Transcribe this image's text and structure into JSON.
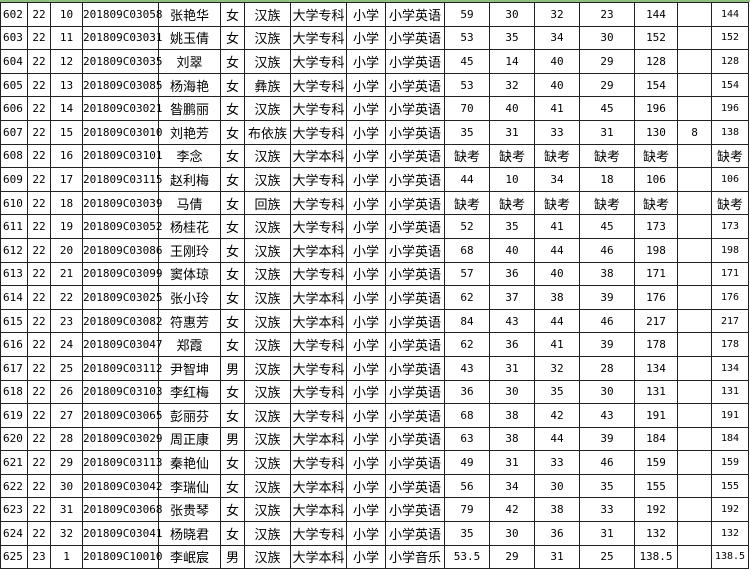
{
  "rows": [
    [
      "602",
      "22",
      "10",
      "201809C03058",
      "张艳华",
      "女",
      "汉族",
      "大学专科",
      "小学",
      "小学英语",
      "59",
      "30",
      "32",
      "23",
      "144",
      "",
      "144"
    ],
    [
      "603",
      "22",
      "11",
      "201809C03031",
      "姚玉倩",
      "女",
      "汉族",
      "大学专科",
      "小学",
      "小学英语",
      "53",
      "35",
      "34",
      "30",
      "152",
      "",
      "152"
    ],
    [
      "604",
      "22",
      "12",
      "201809C03035",
      "刘翠",
      "女",
      "汉族",
      "大学专科",
      "小学",
      "小学英语",
      "45",
      "14",
      "40",
      "29",
      "128",
      "",
      "128"
    ],
    [
      "605",
      "22",
      "13",
      "201809C03085",
      "杨海艳",
      "女",
      "彝族",
      "大学专科",
      "小学",
      "小学英语",
      "53",
      "32",
      "40",
      "29",
      "154",
      "",
      "154"
    ],
    [
      "606",
      "22",
      "14",
      "201809C03021",
      "昝鹏丽",
      "女",
      "汉族",
      "大学专科",
      "小学",
      "小学英语",
      "70",
      "40",
      "41",
      "45",
      "196",
      "",
      "196"
    ],
    [
      "607",
      "22",
      "15",
      "201809C03010",
      "刘艳芳",
      "女",
      "布依族",
      "大学专科",
      "小学",
      "小学英语",
      "35",
      "31",
      "33",
      "31",
      "130",
      "8",
      "138"
    ],
    [
      "608",
      "22",
      "16",
      "201809C03101",
      "李念",
      "女",
      "汉族",
      "大学本科",
      "小学",
      "小学英语",
      "缺考",
      "缺考",
      "缺考",
      "缺考",
      "缺考",
      "",
      "缺考"
    ],
    [
      "609",
      "22",
      "17",
      "201809C03115",
      "赵利梅",
      "女",
      "汉族",
      "大学专科",
      "小学",
      "小学英语",
      "44",
      "10",
      "34",
      "18",
      "106",
      "",
      "106"
    ],
    [
      "610",
      "22",
      "18",
      "201809C03039",
      "马倩",
      "女",
      "回族",
      "大学专科",
      "小学",
      "小学英语",
      "缺考",
      "缺考",
      "缺考",
      "缺考",
      "缺考",
      "",
      "缺考"
    ],
    [
      "611",
      "22",
      "19",
      "201809C03052",
      "杨桂花",
      "女",
      "汉族",
      "大学专科",
      "小学",
      "小学英语",
      "52",
      "35",
      "41",
      "45",
      "173",
      "",
      "173"
    ],
    [
      "612",
      "22",
      "20",
      "201809C03086",
      "王刚玲",
      "女",
      "汉族",
      "大学本科",
      "小学",
      "小学英语",
      "68",
      "40",
      "44",
      "46",
      "198",
      "",
      "198"
    ],
    [
      "613",
      "22",
      "21",
      "201809C03099",
      "窦体琼",
      "女",
      "汉族",
      "大学专科",
      "小学",
      "小学英语",
      "57",
      "36",
      "40",
      "38",
      "171",
      "",
      "171"
    ],
    [
      "614",
      "22",
      "22",
      "201809C03025",
      "张小玲",
      "女",
      "汉族",
      "大学本科",
      "小学",
      "小学英语",
      "62",
      "37",
      "38",
      "39",
      "176",
      "",
      "176"
    ],
    [
      "615",
      "22",
      "23",
      "201809C03082",
      "符惠芳",
      "女",
      "汉族",
      "大学本科",
      "小学",
      "小学英语",
      "84",
      "43",
      "44",
      "46",
      "217",
      "",
      "217"
    ],
    [
      "616",
      "22",
      "24",
      "201809C03047",
      "郑霞",
      "女",
      "汉族",
      "大学专科",
      "小学",
      "小学英语",
      "62",
      "36",
      "41",
      "39",
      "178",
      "",
      "178"
    ],
    [
      "617",
      "22",
      "25",
      "201809C03112",
      "尹智坤",
      "男",
      "汉族",
      "大学专科",
      "小学",
      "小学英语",
      "43",
      "31",
      "32",
      "28",
      "134",
      "",
      "134"
    ],
    [
      "618",
      "22",
      "26",
      "201809C03103",
      "李红梅",
      "女",
      "汉族",
      "大学专科",
      "小学",
      "小学英语",
      "36",
      "30",
      "35",
      "30",
      "131",
      "",
      "131"
    ],
    [
      "619",
      "22",
      "27",
      "201809C03065",
      "彭丽芬",
      "女",
      "汉族",
      "大学专科",
      "小学",
      "小学英语",
      "68",
      "38",
      "42",
      "43",
      "191",
      "",
      "191"
    ],
    [
      "620",
      "22",
      "28",
      "201809C03029",
      "周正康",
      "男",
      "汉族",
      "大学本科",
      "小学",
      "小学英语",
      "63",
      "38",
      "44",
      "39",
      "184",
      "",
      "184"
    ],
    [
      "621",
      "22",
      "29",
      "201809C03113",
      "秦艳仙",
      "女",
      "汉族",
      "大学专科",
      "小学",
      "小学英语",
      "49",
      "31",
      "33",
      "46",
      "159",
      "",
      "159"
    ],
    [
      "622",
      "22",
      "30",
      "201809C03042",
      "李瑞仙",
      "女",
      "汉族",
      "大学本科",
      "小学",
      "小学英语",
      "56",
      "34",
      "30",
      "35",
      "155",
      "",
      "155"
    ],
    [
      "623",
      "22",
      "31",
      "201809C03068",
      "张贵琴",
      "女",
      "汉族",
      "大学本科",
      "小学",
      "小学英语",
      "79",
      "42",
      "38",
      "33",
      "192",
      "",
      "192"
    ],
    [
      "624",
      "22",
      "32",
      "201809C03041",
      "杨晓君",
      "女",
      "汉族",
      "大学专科",
      "小学",
      "小学英语",
      "35",
      "30",
      "36",
      "31",
      "132",
      "",
      "132"
    ],
    [
      "625",
      "23",
      "1",
      "201809C10010",
      "李岷宸",
      "男",
      "汉族",
      "大学本科",
      "小学",
      "小学音乐",
      "53.5",
      "29",
      "31",
      "25",
      "138.5",
      "",
      "138.5"
    ]
  ]
}
